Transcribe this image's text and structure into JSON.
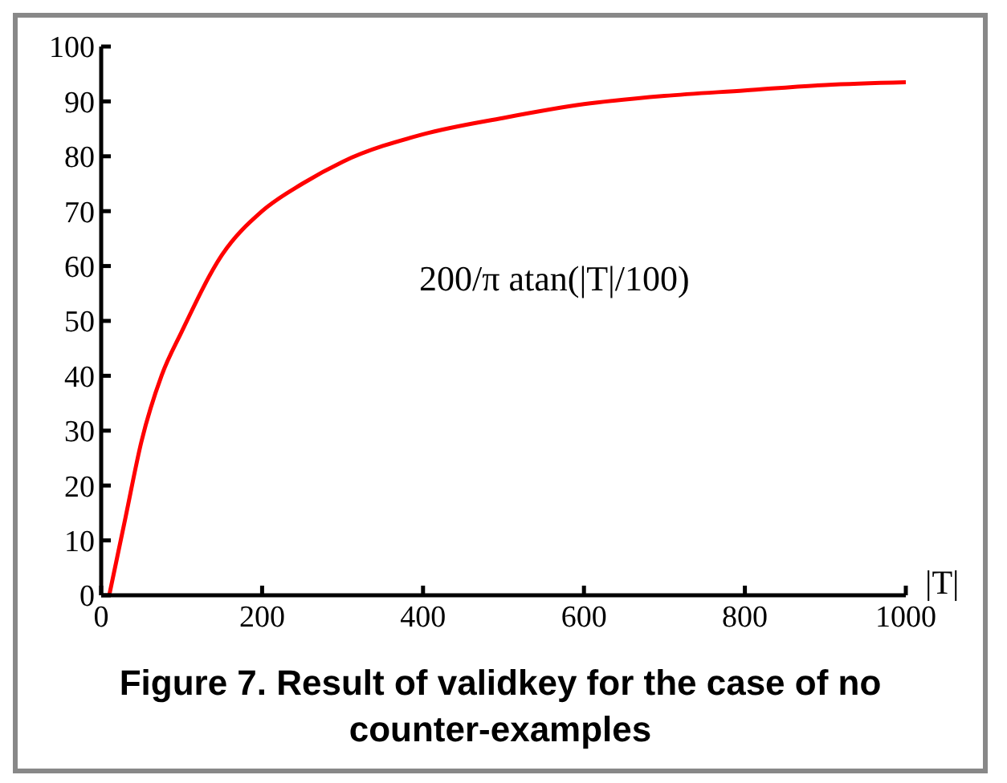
{
  "chart_data": {
    "type": "line",
    "title": "Figure 7. Result of validkey for the case of no counter-examples",
    "xlabel": "|T|",
    "annotations": [
      "200/π atan(|T|/100)"
    ],
    "x": [
      10,
      30,
      50,
      75,
      100,
      150,
      200,
      250,
      300,
      400,
      500,
      600,
      700,
      800,
      900,
      1000
    ],
    "series": [
      {
        "color": "#ff0000",
        "values": [
          0,
          14,
          28,
          40,
          48,
          62,
          70,
          75,
          79,
          84,
          87,
          89.5,
          91,
          92,
          93,
          93.5
        ]
      }
    ],
    "xlim": [
      0,
      1000
    ],
    "xticks": [
      0,
      200,
      400,
      600,
      800,
      1000
    ],
    "ylim": [
      0,
      100
    ],
    "yticks": [
      0,
      10,
      20,
      30,
      40,
      50,
      60,
      70,
      80,
      90,
      100
    ],
    "grid": false,
    "legend": false,
    "marker": "none",
    "line_style": "solid"
  }
}
